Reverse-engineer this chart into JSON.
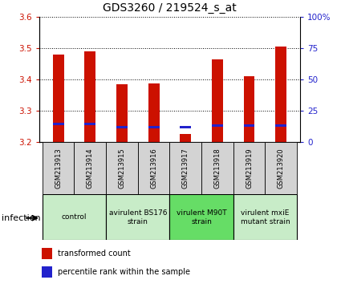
{
  "title": "GDS3260 / 219524_s_at",
  "samples": [
    "GSM213913",
    "GSM213914",
    "GSM213915",
    "GSM213916",
    "GSM213917",
    "GSM213918",
    "GSM213919",
    "GSM213920"
  ],
  "red_values": [
    3.48,
    3.49,
    3.385,
    3.387,
    3.225,
    3.465,
    3.41,
    3.505
  ],
  "blue_values": [
    3.258,
    3.257,
    3.248,
    3.248,
    3.247,
    3.252,
    3.252,
    3.253
  ],
  "bar_bottom": 3.2,
  "ylim": [
    3.2,
    3.6
  ],
  "y2lim": [
    0,
    100
  ],
  "yticks": [
    3.2,
    3.3,
    3.4,
    3.5,
    3.6
  ],
  "y2ticks": [
    0,
    25,
    50,
    75,
    100
  ],
  "y2tick_labels": [
    "0",
    "25",
    "50",
    "75",
    "100%"
  ],
  "red_color": "#cc1100",
  "blue_color": "#2222cc",
  "groups": [
    {
      "label": "control",
      "indices": [
        0,
        1
      ],
      "color": "#c8ecc8"
    },
    {
      "label": "avirulent BS176\nstrain",
      "indices": [
        2,
        3
      ],
      "color": "#c8ecc8"
    },
    {
      "label": "virulent M90T\nstrain",
      "indices": [
        4,
        5
      ],
      "color": "#66dd66"
    },
    {
      "label": "virulent mxiE\nmutant strain",
      "indices": [
        6,
        7
      ],
      "color": "#c8ecc8"
    }
  ],
  "legend_items": [
    {
      "label": "transformed count",
      "color": "#cc1100"
    },
    {
      "label": "percentile rank within the sample",
      "color": "#2222cc"
    }
  ],
  "infection_label": "infection",
  "bar_width": 0.35,
  "title_fontsize": 10,
  "tick_fontsize": 7.5,
  "red_tick_color": "#cc1100",
  "blue_tick_color": "#2222cc",
  "sample_box_color": "#d3d3d3",
  "sample_name_fontsize": 6,
  "group_label_fontsize": 6.5,
  "legend_fontsize": 7,
  "infection_fontsize": 8
}
